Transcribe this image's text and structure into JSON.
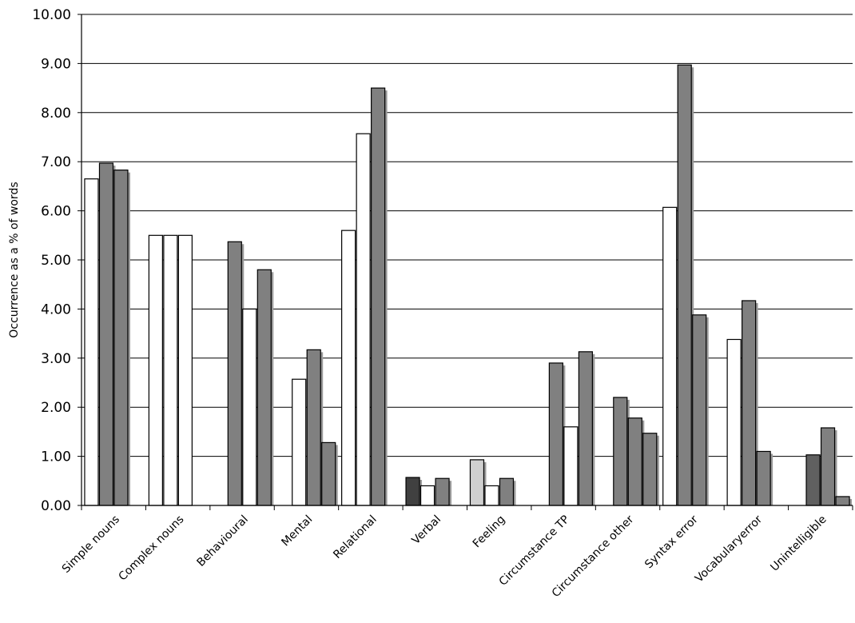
{
  "chart_data": {
    "type": "bar",
    "title": "",
    "xlabel": "",
    "ylabel": "Occurrence as a % of words",
    "ylim": [
      0,
      10
    ],
    "yticks": [
      "0.00",
      "1.00",
      "2.00",
      "3.00",
      "4.00",
      "5.00",
      "6.00",
      "7.00",
      "8.00",
      "9.00",
      "10.00"
    ],
    "grid": true,
    "legend": "none",
    "categories": [
      "Simple nouns",
      "Complex nouns",
      "Behavioural",
      "Mental",
      "Relational",
      "Verbal",
      "Feeling",
      "Circumstance TP",
      "Circumstance other",
      "Syntax error",
      "Vocabularyerror",
      "Unintelligible"
    ],
    "series": [
      {
        "values": [
          6.65,
          5.5,
          0,
          0,
          5.6,
          0.57,
          0.93,
          0,
          0,
          6.07,
          3.38,
          0
        ]
      },
      {
        "values": [
          6.97,
          5.5,
          5.37,
          2.57,
          7.57,
          0.4,
          0.4,
          2.9,
          2.2,
          8.97,
          4.17,
          1.03
        ]
      },
      {
        "values": [
          6.83,
          5.5,
          4.0,
          3.17,
          8.5,
          0.55,
          0.55,
          1.6,
          1.78,
          3.88,
          1.1,
          1.58
        ]
      },
      {
        "values": [
          0,
          0,
          4.8,
          1.28,
          0,
          0,
          0,
          3.13,
          1.47,
          0,
          0,
          0.18
        ]
      }
    ],
    "fills": [
      [
        "#ffffff",
        "#808080",
        "#808080",
        "#ffffff"
      ],
      [
        "#ffffff",
        "#ffffff",
        "#ffffff",
        "#ffffff"
      ],
      [
        "#ffffff",
        "#808080",
        "#ffffff",
        "#808080"
      ],
      [
        "#ffffff",
        "#ffffff",
        "#808080",
        "#808080"
      ],
      [
        "#ffffff",
        "#ffffff",
        "#808080",
        "#ffffff"
      ],
      [
        "#404040",
        "#ffffff",
        "#808080",
        "#ffffff"
      ],
      [
        "#d0d0d0",
        "#ffffff",
        "#808080",
        "#ffffff"
      ],
      [
        "#ffffff",
        "#808080",
        "#ffffff",
        "#808080"
      ],
      [
        "#ffffff",
        "#808080",
        "#808080",
        "#808080"
      ],
      [
        "#ffffff",
        "#808080",
        "#808080",
        "#ffffff"
      ],
      [
        "#ffffff",
        "#808080",
        "#808080",
        "#ffffff"
      ],
      [
        "#ffffff",
        "#606060",
        "#808080",
        "#808080"
      ]
    ],
    "colors": {
      "grid": "#000000",
      "axis": "#000000",
      "bar_outline": "#000000",
      "bar_shadow": "#9a9a9a"
    }
  }
}
